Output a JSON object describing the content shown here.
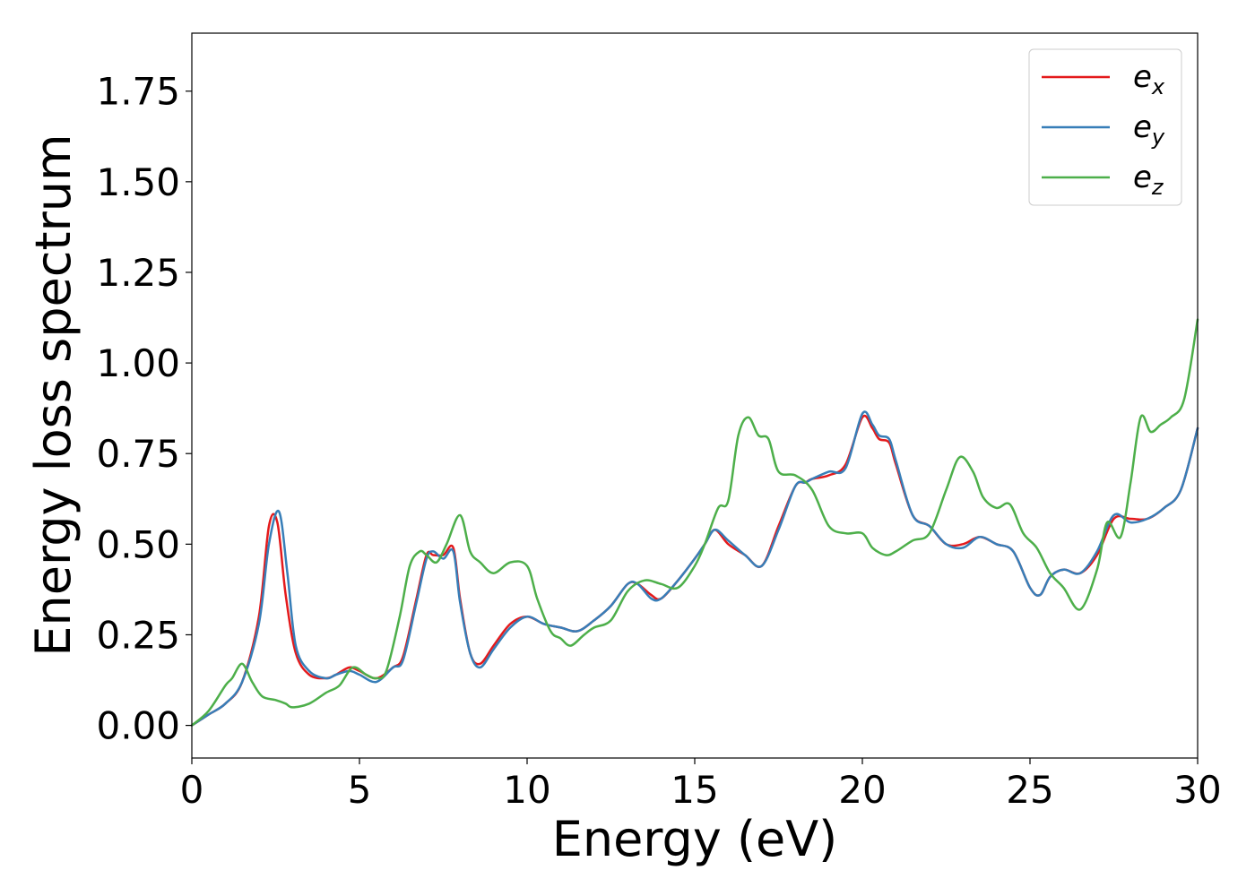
{
  "chart_data": {
    "type": "line",
    "xlabel": "Energy (eV)",
    "ylabel": "Energy loss spectrum",
    "xlim": [
      0,
      30
    ],
    "ylim": [
      -0.09,
      1.91
    ],
    "xticks": [
      0,
      5,
      10,
      15,
      20,
      25,
      30
    ],
    "xtick_labels": [
      "0",
      "5",
      "10",
      "15",
      "20",
      "25",
      "30"
    ],
    "yticks": [
      0,
      0.25,
      0.5,
      0.75,
      1.0,
      1.25,
      1.5,
      1.75
    ],
    "ytick_labels": [
      "0.00",
      "0.25",
      "0.50",
      "0.75",
      "1.00",
      "1.25",
      "1.50",
      "1.75"
    ],
    "grid": false,
    "legend_position": "top-right",
    "series": [
      {
        "name": "e_x",
        "label_base": "e",
        "label_sub": "x",
        "color": "#e41a1c",
        "x": [
          0,
          0.5,
          1.0,
          1.5,
          2.0,
          2.3,
          2.55,
          2.8,
          3.1,
          3.5,
          4.0,
          4.3,
          4.7,
          5.0,
          5.5,
          6.0,
          6.3,
          6.7,
          7.0,
          7.2,
          7.5,
          7.8,
          8.0,
          8.3,
          8.6,
          9.0,
          9.5,
          10.0,
          10.5,
          11.0,
          11.5,
          12.0,
          12.5,
          13.0,
          13.3,
          13.7,
          14.0,
          14.5,
          15.0,
          15.3,
          15.6,
          16.0,
          16.5,
          17.0,
          17.5,
          18.0,
          18.3,
          18.5,
          19.0,
          19.5,
          20.0,
          20.3,
          20.5,
          20.8,
          21.0,
          21.5,
          22.0,
          22.5,
          23.0,
          23.5,
          24.0,
          24.5,
          25.0,
          25.3,
          25.6,
          26.0,
          26.5,
          27.0,
          27.5,
          28.0,
          28.5,
          29.0,
          29.5,
          30.0
        ],
        "y": [
          0,
          0.03,
          0.06,
          0.12,
          0.3,
          0.55,
          0.56,
          0.36,
          0.2,
          0.14,
          0.13,
          0.14,
          0.16,
          0.15,
          0.13,
          0.16,
          0.19,
          0.35,
          0.47,
          0.47,
          0.47,
          0.49,
          0.35,
          0.2,
          0.17,
          0.22,
          0.28,
          0.3,
          0.28,
          0.27,
          0.26,
          0.29,
          0.33,
          0.39,
          0.39,
          0.36,
          0.35,
          0.4,
          0.46,
          0.5,
          0.54,
          0.5,
          0.47,
          0.44,
          0.55,
          0.66,
          0.67,
          0.68,
          0.69,
          0.72,
          0.85,
          0.82,
          0.79,
          0.78,
          0.72,
          0.58,
          0.55,
          0.5,
          0.5,
          0.52,
          0.5,
          0.48,
          0.38,
          0.36,
          0.41,
          0.43,
          0.42,
          0.47,
          0.57,
          0.57,
          0.57,
          0.6,
          0.65,
          0.82
        ]
      },
      {
        "name": "e_y",
        "label_base": "e",
        "label_sub": "y",
        "color": "#377eb8",
        "x": [
          0,
          0.5,
          1.0,
          1.5,
          2.0,
          2.3,
          2.6,
          2.85,
          3.1,
          3.5,
          4.0,
          4.3,
          4.7,
          5.0,
          5.5,
          6.0,
          6.3,
          6.7,
          7.0,
          7.2,
          7.5,
          7.8,
          8.0,
          8.3,
          8.6,
          9.0,
          9.5,
          10.0,
          10.5,
          11.0,
          11.5,
          12.0,
          12.5,
          13.0,
          13.3,
          13.7,
          14.0,
          14.5,
          15.0,
          15.3,
          15.6,
          16.0,
          16.5,
          17.0,
          17.5,
          18.0,
          18.3,
          18.5,
          19.0,
          19.5,
          20.0,
          20.3,
          20.5,
          20.8,
          21.0,
          21.5,
          22.0,
          22.5,
          23.0,
          23.5,
          24.0,
          24.5,
          25.0,
          25.3,
          25.6,
          26.0,
          26.5,
          27.0,
          27.5,
          28.0,
          28.5,
          29.0,
          29.5,
          30.0
        ],
        "y": [
          0,
          0.03,
          0.06,
          0.12,
          0.28,
          0.5,
          0.59,
          0.42,
          0.22,
          0.15,
          0.13,
          0.14,
          0.15,
          0.14,
          0.12,
          0.16,
          0.18,
          0.34,
          0.46,
          0.48,
          0.46,
          0.48,
          0.34,
          0.2,
          0.16,
          0.21,
          0.27,
          0.3,
          0.28,
          0.27,
          0.26,
          0.29,
          0.33,
          0.39,
          0.39,
          0.35,
          0.35,
          0.4,
          0.46,
          0.5,
          0.54,
          0.51,
          0.47,
          0.44,
          0.54,
          0.66,
          0.67,
          0.68,
          0.7,
          0.71,
          0.86,
          0.83,
          0.8,
          0.79,
          0.73,
          0.58,
          0.55,
          0.5,
          0.49,
          0.52,
          0.5,
          0.48,
          0.38,
          0.36,
          0.41,
          0.43,
          0.42,
          0.48,
          0.58,
          0.56,
          0.57,
          0.6,
          0.65,
          0.82
        ]
      },
      {
        "name": "e_z",
        "label_base": "e",
        "label_sub": "z",
        "color": "#4daf4a",
        "x": [
          0,
          0.5,
          1.0,
          1.2,
          1.5,
          1.8,
          2.1,
          2.5,
          2.8,
          3.0,
          3.5,
          4.0,
          4.4,
          4.8,
          5.2,
          5.5,
          5.8,
          6.2,
          6.5,
          6.8,
          7.0,
          7.3,
          7.6,
          8.0,
          8.3,
          8.6,
          9.0,
          9.5,
          10.0,
          10.3,
          10.7,
          11.0,
          11.3,
          11.7,
          12.0,
          12.5,
          13.0,
          13.5,
          14.0,
          14.5,
          15.0,
          15.3,
          15.7,
          16.0,
          16.3,
          16.6,
          16.9,
          17.2,
          17.5,
          18.0,
          18.5,
          19.0,
          19.5,
          20.0,
          20.3,
          20.7,
          21.0,
          21.5,
          22.0,
          22.5,
          22.9,
          23.3,
          23.6,
          24.0,
          24.4,
          24.8,
          25.2,
          25.6,
          26.0,
          26.5,
          27.0,
          27.3,
          27.7,
          28.0,
          28.3,
          28.6,
          28.9,
          29.2,
          29.6,
          30.0
        ],
        "y": [
          0,
          0.04,
          0.11,
          0.13,
          0.17,
          0.12,
          0.08,
          0.07,
          0.06,
          0.05,
          0.06,
          0.09,
          0.11,
          0.16,
          0.14,
          0.13,
          0.15,
          0.3,
          0.44,
          0.48,
          0.47,
          0.45,
          0.5,
          0.58,
          0.48,
          0.45,
          0.42,
          0.45,
          0.44,
          0.35,
          0.26,
          0.24,
          0.22,
          0.25,
          0.27,
          0.29,
          0.37,
          0.4,
          0.39,
          0.38,
          0.44,
          0.5,
          0.6,
          0.62,
          0.8,
          0.85,
          0.8,
          0.79,
          0.7,
          0.69,
          0.65,
          0.55,
          0.53,
          0.53,
          0.49,
          0.47,
          0.48,
          0.51,
          0.53,
          0.65,
          0.74,
          0.7,
          0.63,
          0.6,
          0.61,
          0.53,
          0.49,
          0.42,
          0.38,
          0.32,
          0.43,
          0.56,
          0.52,
          0.67,
          0.85,
          0.81,
          0.83,
          0.85,
          0.9,
          1.12
        ]
      }
    ]
  }
}
